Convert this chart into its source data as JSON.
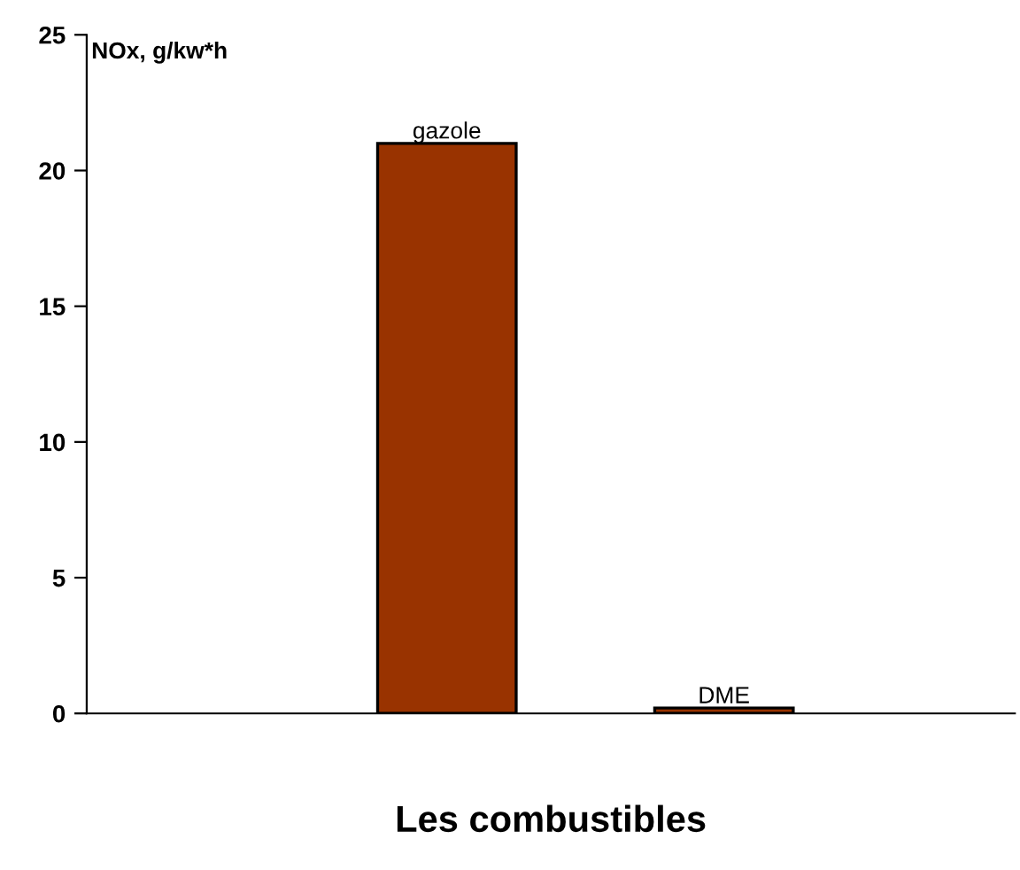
{
  "chart_data": {
    "type": "bar",
    "ylabel": "NOx, g/kw*h",
    "xlabel": "Les combustibles",
    "categories": [
      "gazole",
      "DME"
    ],
    "values": [
      21,
      0.2
    ],
    "color": "#993300",
    "ylim": [
      0,
      25
    ],
    "yticks": [
      0,
      5,
      10,
      15,
      20,
      25
    ],
    "grid": false,
    "legend": false
  }
}
